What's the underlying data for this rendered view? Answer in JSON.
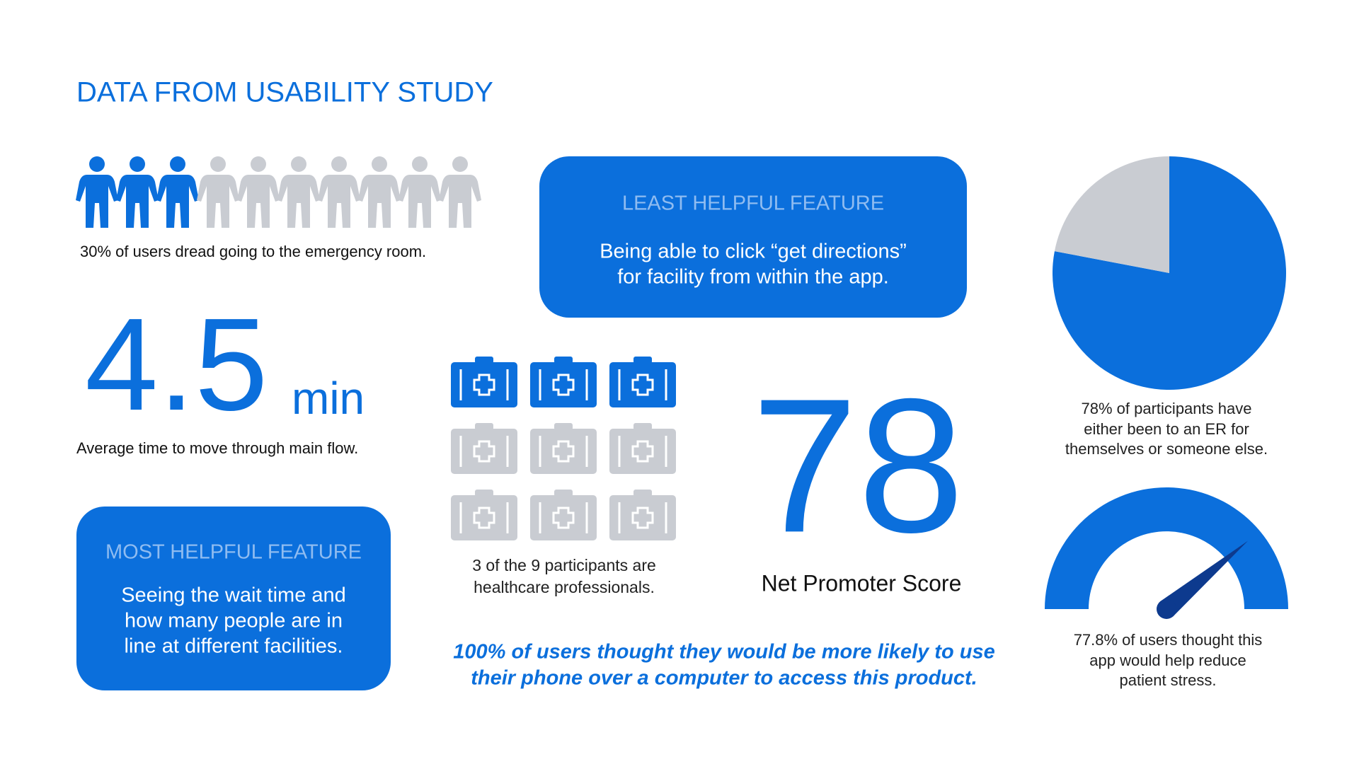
{
  "title": "DATA FROM USABILITY STUDY",
  "people": {
    "filled": 3,
    "total": 10,
    "caption": "30% of users dread going to the emergency room."
  },
  "least_helpful": {
    "heading": "LEAST HELPFUL FEATURE",
    "lines": [
      "Being able to click “get directions”",
      "for facility from within the app."
    ]
  },
  "time": {
    "value": 4.5,
    "unit": "min",
    "caption": "Average time to move through main flow."
  },
  "most_helpful": {
    "heading": "MOST HELPFUL FEATURE",
    "lines": [
      "Seeing the wait time and",
      "how many people are in",
      "line at different facilities."
    ]
  },
  "kits": {
    "filled": 3,
    "total": 9,
    "caption": [
      "3 of the 9 participants are",
      "healthcare professionals."
    ]
  },
  "nps": {
    "value": 78,
    "caption": "Net Promoter Score"
  },
  "pie": {
    "values": [
      78,
      22
    ],
    "colors": [
      "#0b6fdc",
      "#c9ccd2"
    ],
    "caption": [
      "78% of participants have",
      "either been to an ER for",
      "themselves or someone else."
    ]
  },
  "gauge": {
    "value": 77.8,
    "max": 100,
    "caption": [
      "77.8% of users thought this",
      "app would help reduce",
      "patient stress."
    ]
  },
  "footer": [
    "100% of users thought they would be more likely to use",
    "their phone over a computer to access this product."
  ]
}
